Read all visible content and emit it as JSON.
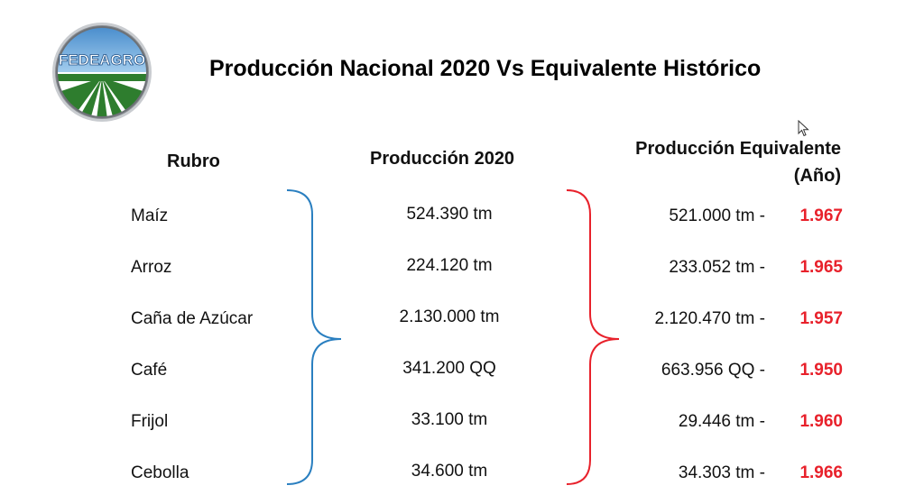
{
  "title": "Producción Nacional 2020 Vs Equivalente Histórico",
  "logo": {
    "text": "FEDEAGRO"
  },
  "headers": {
    "rubro": "Rubro",
    "produccion": "Producción 2020",
    "equivalente_line1": "Producción Equivalente",
    "equivalente_line2": "(Año)"
  },
  "rows": [
    {
      "rubro": "Maíz",
      "produccion": "524.390 tm",
      "equivalente": "521.000 tm  -",
      "anio": "1.967"
    },
    {
      "rubro": "Arroz",
      "produccion": "224.120 tm",
      "equivalente": "233.052 tm -",
      "anio": "1.965"
    },
    {
      "rubro": "Caña de Azúcar",
      "produccion": "2.130.000 tm",
      "equivalente": "2.120.470  tm  -",
      "anio": "1.957"
    },
    {
      "rubro": "Café",
      "produccion": "341.200 QQ",
      "equivalente": "663.956 QQ -",
      "anio": "1.950"
    },
    {
      "rubro": "Frijol",
      "produccion": "33.100 tm",
      "equivalente": "29.446 tm  -",
      "anio": "1.960"
    },
    {
      "rubro": "Cebolla",
      "produccion": "34.600 tm",
      "equivalente": "34.303 tm  -",
      "anio": "1.966"
    }
  ],
  "colors": {
    "year_red": "#e8212b",
    "brace_blue": "#2a7fc0",
    "brace_red": "#e8212b",
    "logo_green": "#2e7d2e",
    "logo_sky": "#5aa0d8"
  },
  "icons": {
    "cursor": "mouse-pointer-icon"
  }
}
